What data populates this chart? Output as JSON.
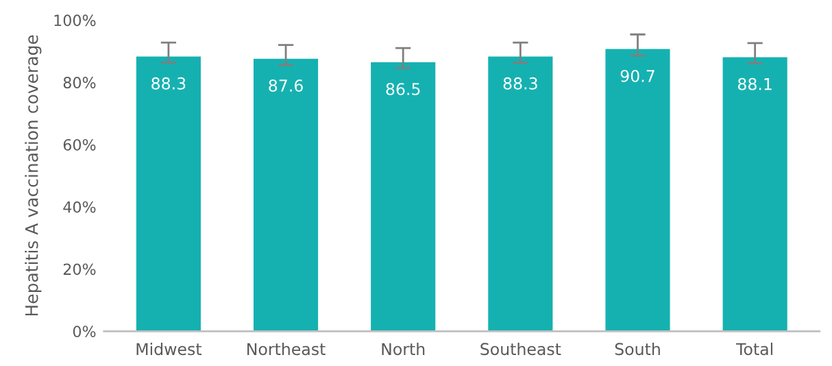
{
  "chart_data": {
    "type": "bar",
    "ylabel": "Hepatitis A vaccination coverage",
    "categories": [
      "Midwest",
      "Northeast",
      "North",
      "Southeast",
      "South",
      "Total"
    ],
    "values": [
      88.3,
      87.6,
      86.5,
      88.3,
      90.7,
      88.1
    ],
    "errors": [
      [
        86.4,
        92.8
      ],
      [
        85.5,
        92.0
      ],
      [
        84.6,
        91.0
      ],
      [
        86.3,
        92.8
      ],
      [
        88.6,
        95.4
      ],
      [
        86.1,
        92.6
      ]
    ],
    "color": "#15b1b0",
    "data_labels": true,
    "grid": false,
    "ylim": [
      0,
      100
    ],
    "yticks": [
      {
        "value": 0,
        "label": "0%"
      },
      {
        "value": 20,
        "label": "20%"
      },
      {
        "value": 40,
        "label": "40%"
      },
      {
        "value": 60,
        "label": "60%"
      },
      {
        "value": 80,
        "label": "80%"
      },
      {
        "value": 100,
        "label": "100%"
      }
    ]
  }
}
